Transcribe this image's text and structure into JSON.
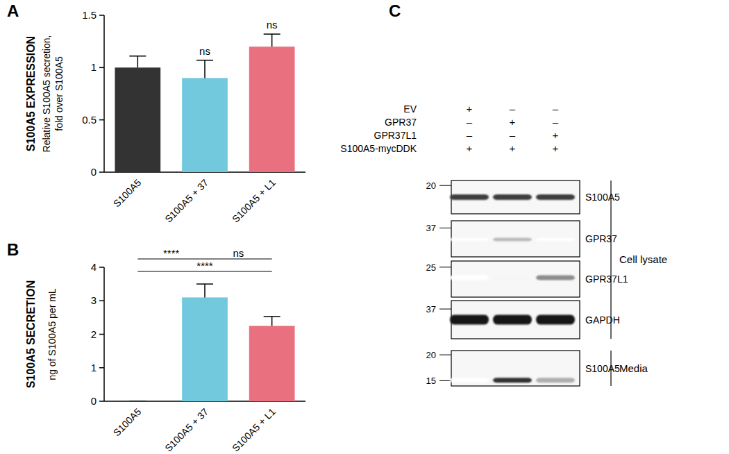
{
  "chart_data": [
    {
      "type": "bar",
      "panel_label": "A",
      "title": "S100A5 EXPRESSION",
      "y_label": [
        "Relative S100A5 secretion,",
        "fold over S100A5"
      ],
      "categories": [
        "S100A5",
        "S100A5 + 37",
        "S100A5 + L1"
      ],
      "values": [
        1.0,
        0.9,
        1.2
      ],
      "errors": [
        0.11,
        0.17,
        0.12
      ],
      "colors": [
        "#333333",
        "#72c8dc",
        "#e9717f"
      ],
      "ylim": [
        0,
        1.5
      ],
      "yticks": [
        0,
        0.5,
        1,
        1.5
      ],
      "annotations": [
        {
          "text": "ns",
          "category": 1
        },
        {
          "text": "ns",
          "category": 2
        }
      ]
    },
    {
      "type": "bar",
      "panel_label": "B",
      "title": "S100A5 SECRETION",
      "y_label": [
        "ng of S100A5 per mL"
      ],
      "categories": [
        "S100A5",
        "S100A5 + 37",
        "S100A5 + L1"
      ],
      "values": [
        0,
        3.1,
        2.25
      ],
      "errors": [
        0,
        0.4,
        0.28
      ],
      "colors": [
        "#333333",
        "#72c8dc",
        "#e9717f"
      ],
      "ylim": [
        0,
        4
      ],
      "yticks": [
        0,
        1,
        2,
        3,
        4
      ],
      "annotations": [
        {
          "text": "****",
          "from": 0,
          "to": 1,
          "level": 0
        },
        {
          "text": "ns",
          "from": 1,
          "to": 2,
          "level": 0
        },
        {
          "text": "****",
          "from": 0,
          "to": 2,
          "level": 1
        }
      ]
    }
  ],
  "blot": {
    "panel_label": "C",
    "conditions": [
      {
        "name": "EV",
        "lanes": [
          "+",
          "–",
          "–"
        ]
      },
      {
        "name": "GPR37",
        "lanes": [
          "–",
          "+",
          "–"
        ]
      },
      {
        "name": "GPR37L1",
        "lanes": [
          "–",
          "–",
          "+"
        ]
      },
      {
        "name": "S100A5-mycDDK",
        "lanes": [
          "+",
          "+",
          "+"
        ]
      }
    ],
    "panels": [
      {
        "label": "S100A5",
        "markers": [
          20
        ],
        "intensity": [
          0.85,
          0.85,
          0.85
        ]
      },
      {
        "label": "GPR37",
        "markers": [
          37
        ],
        "intensity": [
          0,
          0.3,
          0
        ]
      },
      {
        "label": "GPR37L1",
        "markers": [
          25
        ],
        "intensity": [
          0,
          0.04,
          0.5
        ]
      },
      {
        "label": "GAPDH",
        "markers": [
          37
        ],
        "intensity": [
          1,
          1,
          1
        ]
      },
      {
        "label": "S100A5",
        "markers": [
          20,
          15
        ],
        "intensity": [
          0,
          0.9,
          0.35
        ]
      }
    ],
    "groups": [
      {
        "label": "Cell lysate",
        "panels": [
          0,
          1,
          2,
          3
        ]
      },
      {
        "label": "Media",
        "panels": [
          4
        ]
      }
    ]
  }
}
